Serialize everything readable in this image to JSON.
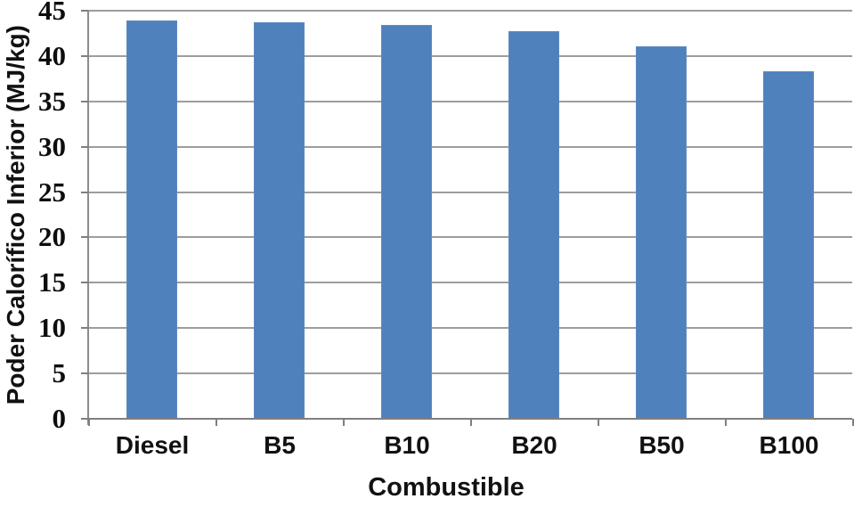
{
  "chart_data": {
    "type": "bar",
    "title": "",
    "xlabel": "Combustible",
    "ylabel": "Poder Calorífico Inferior (MJ/kg)",
    "categories": [
      "Diesel",
      "B5",
      "B10",
      "B20",
      "B50",
      "B100"
    ],
    "values": [
      43.9,
      43.7,
      43.4,
      42.7,
      41.1,
      38.3
    ],
    "ylim": [
      0,
      45
    ],
    "yticks": [
      0,
      5,
      10,
      15,
      20,
      25,
      30,
      35,
      40,
      45
    ],
    "grid": true,
    "legend": false,
    "bar_color": "#4f81bd",
    "bar_edge_color": "#5d89c0",
    "gridline_color": "#9d9d9d",
    "axis_color": "#7f7f7f",
    "text_color": "#111111"
  }
}
